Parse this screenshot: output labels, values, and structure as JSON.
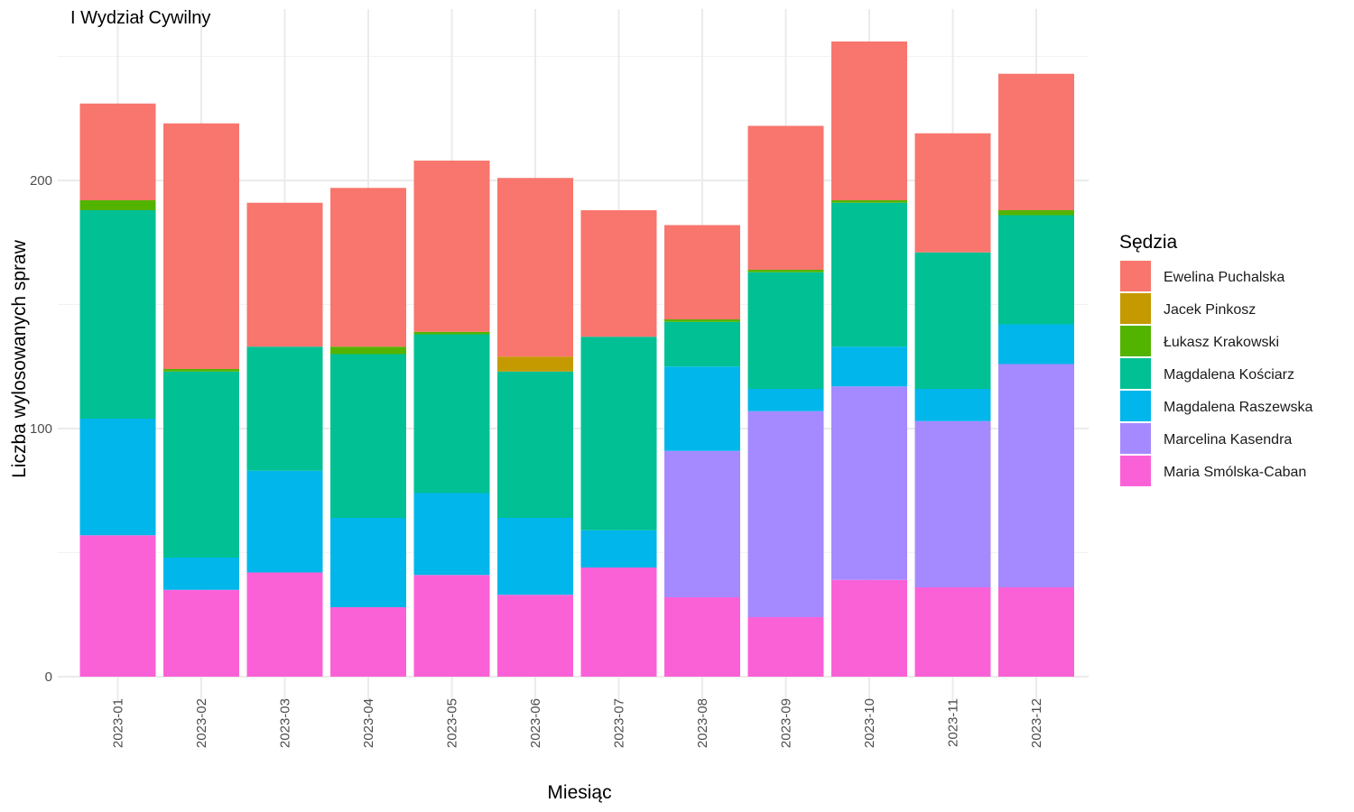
{
  "chart_data": {
    "type": "bar",
    "stacked": true,
    "title": "I Wydział Cywilny",
    "xlabel": "Miesiąc",
    "ylabel": "Liczba wylosowanych spraw",
    "ylim": [
      -10,
      270
    ],
    "yticks": [
      0,
      100,
      200
    ],
    "grid": true,
    "legend_position": "right",
    "legend_title": "Sędzia",
    "categories": [
      "2023-01",
      "2023-02",
      "2023-03",
      "2023-04",
      "2023-05",
      "2023-06",
      "2023-07",
      "2023-08",
      "2023-09",
      "2023-10",
      "2023-11",
      "2023-12"
    ],
    "series": [
      {
        "name": "Maria Smólska-Caban",
        "color": "#FB61D7",
        "values": [
          57,
          35,
          42,
          28,
          41,
          33,
          44,
          32,
          24,
          39,
          36,
          36
        ]
      },
      {
        "name": "Marcelina Kasendra",
        "color": "#A58AFF",
        "values": [
          0,
          0,
          0,
          0,
          0,
          0,
          0,
          59,
          83,
          78,
          67,
          90
        ]
      },
      {
        "name": "Magdalena Raszewska",
        "color": "#00B6EB",
        "values": [
          47,
          13,
          41,
          36,
          33,
          31,
          15,
          34,
          9,
          16,
          13,
          16
        ]
      },
      {
        "name": "Magdalena Kościarz",
        "color": "#00C094",
        "values": [
          84,
          75,
          50,
          66,
          64,
          59,
          78,
          18,
          47,
          58,
          55,
          44
        ]
      },
      {
        "name": "Łukasz Krakowski",
        "color": "#53B400",
        "values": [
          4,
          1,
          0,
          3,
          1,
          0,
          0,
          1,
          1,
          1,
          0,
          2
        ]
      },
      {
        "name": "Jacek Pinkosz",
        "color": "#C49A00",
        "values": [
          0,
          0,
          0,
          0,
          0,
          6,
          0,
          0,
          0,
          0,
          0,
          0
        ]
      },
      {
        "name": "Ewelina Puchalska",
        "color": "#F8766D",
        "values": [
          39,
          99,
          58,
          64,
          69,
          72,
          51,
          38,
          58,
          64,
          48,
          55
        ]
      }
    ],
    "legend_order": [
      "Ewelina Puchalska",
      "Jacek Pinkosz",
      "Łukasz Krakowski",
      "Magdalena Kościarz",
      "Magdalena Raszewska",
      "Marcelina Kasendra",
      "Maria Smólska-Caban"
    ]
  }
}
